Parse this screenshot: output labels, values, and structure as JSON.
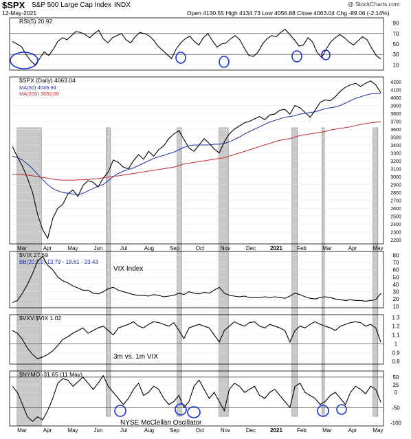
{
  "header": {
    "symbol": "$SPX",
    "name": "S&P 500 Large Cap Index",
    "exchange": "INDX",
    "date": "12-May-2021",
    "quote": "Open 4130.55  High 4134.73  Low 4056.88  Close 4063.04  Chg -89.06 (-2.14%)",
    "watermark": "@ StockCharts.com"
  },
  "chart_data": [
    {
      "type": "line",
      "title": "RSI(5) 20.92",
      "y_ticks": [
        10,
        30,
        50,
        70,
        90
      ],
      "ylim": [
        0,
        100
      ],
      "guide_levels": [
        30,
        70
      ],
      "series": [
        {
          "name": "RSI(5)",
          "values": [
            55,
            50,
            45,
            30,
            18,
            10,
            22,
            35,
            28,
            40,
            55,
            62,
            58,
            66,
            74,
            72,
            68,
            62,
            70,
            76,
            60,
            52,
            62,
            66,
            70,
            58,
            52,
            64,
            72,
            70,
            66,
            58,
            46,
            38,
            30,
            22,
            40,
            52,
            60,
            65,
            55,
            48,
            62,
            70,
            56,
            44,
            50,
            52,
            60,
            66,
            58,
            42,
            28,
            26,
            34,
            50,
            60,
            66,
            64,
            72,
            78,
            68,
            58,
            46,
            48,
            62,
            54,
            34,
            24,
            40,
            54,
            62,
            68,
            62,
            54,
            48,
            56,
            64,
            58,
            42,
            28,
            20.92
          ]
        }
      ]
    },
    {
      "type": "line",
      "title": "$SPX (Daily) 4063.04",
      "x_ticks": [
        "Mar",
        "Apr",
        "May",
        "Jun",
        "Jul",
        "Aug",
        "Sep",
        "Oct",
        "Nov",
        "Dec",
        "2021",
        "Feb",
        "Mar",
        "Apr",
        "May"
      ],
      "y_ticks": [
        2200,
        2300,
        2400,
        2500,
        2600,
        2700,
        2800,
        2900,
        3000,
        3100,
        3200,
        3300,
        3400,
        3500,
        3600,
        3700,
        3800,
        3900,
        4000,
        4100,
        4200
      ],
      "ylim": [
        2150,
        4260
      ],
      "series": [
        {
          "name": "$SPX",
          "values": [
            3380,
            3250,
            3130,
            2980,
            2800,
            2520,
            2330,
            2220,
            2470,
            2600,
            2650,
            2780,
            2830,
            2750,
            2890,
            2950,
            2930,
            2870,
            2980,
            3060,
            3210,
            3180,
            3120,
            3100,
            3200,
            3280,
            3220,
            3320,
            3260,
            3340,
            3390,
            3480,
            3540,
            3580,
            3470,
            3360,
            3320,
            3400,
            3480,
            3420,
            3350,
            3300,
            3440,
            3540,
            3600,
            3640,
            3680,
            3700,
            3730,
            3760,
            3720,
            3780,
            3790,
            3840,
            3850,
            3790,
            3900,
            3870,
            3810,
            3750,
            3840,
            3940,
            3970,
            3960,
            4010,
            4080,
            4130,
            4160,
            4180,
            4140,
            4180,
            4210,
            4160,
            4060
          ]
        },
        {
          "name": "MA(50) 4049.94",
          "values": [
            3260,
            3240,
            3210,
            3160,
            3100,
            3030,
            2960,
            2900,
            2850,
            2820,
            2800,
            2790,
            2780,
            2770,
            2790,
            2820,
            2850,
            2880,
            2900,
            2950,
            3000,
            3040,
            3070,
            3090,
            3110,
            3140,
            3170,
            3200,
            3230,
            3250,
            3270,
            3290,
            3310,
            3340,
            3370,
            3390,
            3400,
            3400,
            3400,
            3400,
            3410,
            3410,
            3420,
            3440,
            3470,
            3500,
            3540,
            3570,
            3600,
            3630,
            3660,
            3690,
            3710,
            3730,
            3750,
            3760,
            3770,
            3790,
            3800,
            3810,
            3820,
            3840,
            3860,
            3870,
            3880,
            3900,
            3930,
            3960,
            3990,
            4010,
            4030,
            4045,
            4049,
            4049.94
          ]
        },
        {
          "name": "MA(200) 3692.60",
          "values": [
            3030,
            3030,
            3025,
            3020,
            3010,
            3000,
            2990,
            2980,
            2970,
            2960,
            2955,
            2955,
            2955,
            2960,
            2960,
            2965,
            2970,
            2975,
            2985,
            2995,
            3005,
            3010,
            3020,
            3030,
            3040,
            3050,
            3060,
            3070,
            3080,
            3090,
            3100,
            3110,
            3120,
            3140,
            3160,
            3170,
            3180,
            3190,
            3200,
            3210,
            3220,
            3230,
            3240,
            3260,
            3280,
            3300,
            3320,
            3340,
            3360,
            3380,
            3400,
            3420,
            3440,
            3460,
            3470,
            3480,
            3500,
            3520,
            3530,
            3540,
            3550,
            3560,
            3570,
            3590,
            3600,
            3610,
            3620,
            3630,
            3645,
            3660,
            3670,
            3680,
            3688,
            3692.6
          ]
        }
      ]
    },
    {
      "type": "line",
      "title": "$VIX 27.59",
      "subtitle": "BB(20,2.0) 13.79 - 18.61 - 23.43",
      "annotation": "VIX Index",
      "y_ticks": [
        10,
        20,
        30,
        40,
        50,
        60,
        70,
        80
      ],
      "ylim": [
        8,
        85
      ],
      "series": [
        {
          "name": "$VIX",
          "values": [
            15,
            18,
            28,
            40,
            55,
            72,
            78,
            66,
            60,
            50,
            45,
            42,
            38,
            35,
            32,
            32,
            28,
            27,
            30,
            34,
            36,
            32,
            30,
            28,
            26,
            25,
            25,
            24,
            26,
            25,
            23,
            24,
            25,
            28,
            26,
            30,
            28,
            27,
            29,
            28,
            32,
            36,
            28,
            25,
            24,
            23,
            24,
            22,
            22,
            22,
            23,
            22,
            23,
            22,
            21,
            24,
            28,
            26,
            23,
            21,
            20,
            22,
            23,
            22,
            20,
            19,
            18,
            19,
            18,
            18,
            17,
            18,
            19,
            27.59
          ]
        }
      ]
    },
    {
      "type": "line",
      "title": "$VXV:$VIX 1.02",
      "annotation": "3m vs. 1m VIX",
      "y_ticks": [
        0.8,
        0.9,
        1.0,
        1.1,
        1.2,
        1.3
      ],
      "ylim": [
        0.77,
        1.33
      ],
      "guide_levels": [
        1.0
      ],
      "series": [
        {
          "name": "$VXV:$VIX",
          "values": [
            1.15,
            1.12,
            1.05,
            0.95,
            0.88,
            0.83,
            0.85,
            0.88,
            0.92,
            0.98,
            1.05,
            1.08,
            1.12,
            1.15,
            1.18,
            1.12,
            1.15,
            1.18,
            1.2,
            1.15,
            1.1,
            1.18,
            1.2,
            1.22,
            1.25,
            1.2,
            1.18,
            1.22,
            1.25,
            1.24,
            1.22,
            1.2,
            1.24,
            1.15,
            1.06,
            1.18,
            1.2,
            1.22,
            1.2,
            1.18,
            1.1,
            1.02,
            1.15,
            1.2,
            1.25,
            1.22,
            1.2,
            1.24,
            1.25,
            1.2,
            1.18,
            1.22,
            1.2,
            1.18,
            1.15,
            1.02,
            1.15,
            1.2,
            1.18,
            1.22,
            1.25,
            1.22,
            1.2,
            1.18,
            1.15,
            1.2,
            1.22,
            1.24,
            1.25,
            1.24,
            1.2,
            1.22,
            1.18,
            1.02
          ]
        }
      ]
    },
    {
      "type": "line",
      "title": "$NYMO -31.65 (11 May)",
      "annotation": "NYSE McClellan Oscillator",
      "x_ticks": [
        "Mar",
        "Apr",
        "May",
        "Jun",
        "Jul",
        "Aug",
        "Sep",
        "Oct",
        "Nov",
        "Dec",
        "2021",
        "Feb",
        "Mar",
        "Apr",
        "May"
      ],
      "y_ticks": [
        -100,
        -50,
        0,
        25,
        50
      ],
      "ylim": [
        -110,
        70
      ],
      "guide_levels": [
        -50,
        50
      ],
      "series": [
        {
          "name": "$NYMO",
          "values": [
            20,
            0,
            -40,
            -80,
            -95,
            -80,
            -90,
            -60,
            -20,
            30,
            45,
            40,
            20,
            35,
            50,
            30,
            10,
            30,
            55,
            20,
            0,
            -20,
            -40,
            -20,
            10,
            30,
            -10,
            0,
            20,
            10,
            -20,
            -40,
            -30,
            -10,
            -50,
            -30,
            20,
            40,
            10,
            -20,
            0,
            -30,
            -60,
            10,
            30,
            20,
            0,
            10,
            20,
            -10,
            -20,
            0,
            10,
            -10,
            -30,
            -50,
            20,
            30,
            0,
            -10,
            -20,
            -40,
            -30,
            -10,
            0,
            -20,
            -40,
            0,
            20,
            10,
            -5,
            20,
            10,
            -31.65
          ]
        }
      ]
    }
  ],
  "shaded_periods": [
    "Feb-Mar 2020",
    "Jun 2020",
    "Sep 2020",
    "Oct-Nov 2020",
    "Jan-Feb 2021",
    "Mar 2021",
    "May 2021"
  ]
}
